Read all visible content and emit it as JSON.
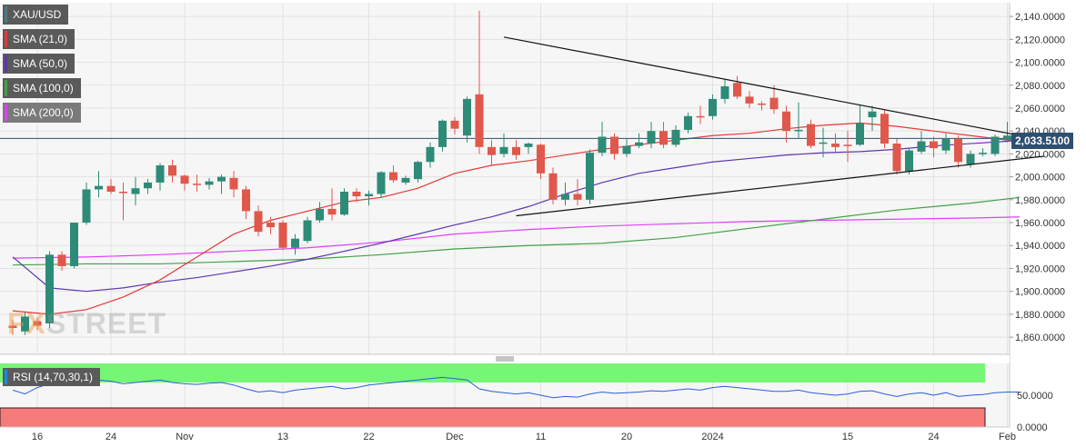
{
  "legends": [
    {
      "label": "XAU/USD",
      "color": "#4a7a82"
    },
    {
      "label": "SMA (21,0)",
      "color": "#e53935"
    },
    {
      "label": "SMA (50,0)",
      "color": "#5e35b1"
    },
    {
      "label": "SMA (100,0)",
      "color": "#43a047"
    },
    {
      "label": "SMA (200,0)",
      "color": "#e040fb"
    }
  ],
  "rsi_legend": {
    "label": "RSI (14,70,30,1)",
    "color": "#1e88e5"
  },
  "current_price_label": "2,033.5100",
  "watermark": {
    "fx": "FX",
    "rest": "STREET"
  },
  "colors": {
    "bull": "#2e8b77",
    "bear": "#e0584c",
    "rsi_overbought": "#77f577",
    "rsi_oversold": "#f77a7a",
    "rsi_line": "#2b5fd9",
    "trendline": "#111111",
    "price_line": "#2f4f70"
  },
  "chart_data": {
    "type": "candlestick",
    "price_axis": {
      "range": [
        1845,
        2152
      ],
      "ticks": [
        1860,
        1880,
        1900,
        1920,
        1940,
        1960,
        1980,
        2000,
        2020,
        2040,
        2060,
        2080,
        2100,
        2120,
        2140
      ],
      "tick_labels": [
        "1,860.0000",
        "1,880.0000",
        "1,900.0000",
        "1,920.0000",
        "1,940.0000",
        "1,960.0000",
        "1,980.0000",
        "2,000.0000",
        "2,020.0000",
        "2,040.0000",
        "2,060.0000",
        "2,080.0000",
        "2,100.0000",
        "2,120.0000",
        "2,140.0000"
      ]
    },
    "date_axis_labels": [
      {
        "label": "16",
        "i": 2
      },
      {
        "label": "24",
        "i": 8
      },
      {
        "label": "Nov",
        "i": 14
      },
      {
        "label": "13",
        "i": 22
      },
      {
        "label": "22",
        "i": 29
      },
      {
        "label": "Dec",
        "i": 36
      },
      {
        "label": "11",
        "i": 43
      },
      {
        "label": "20",
        "i": 50
      },
      {
        "label": "2024",
        "i": 57
      },
      {
        "label": "15",
        "i": 68
      },
      {
        "label": "24",
        "i": 75
      },
      {
        "label": "Feb",
        "i": 81
      }
    ],
    "candles": [
      {
        "o": 1870,
        "h": 1875,
        "l": 1862,
        "c": 1868
      },
      {
        "o": 1865,
        "h": 1882,
        "l": 1862,
        "c": 1878
      },
      {
        "o": 1874,
        "h": 1877,
        "l": 1866,
        "c": 1870
      },
      {
        "o": 1872,
        "h": 1935,
        "l": 1868,
        "c": 1932
      },
      {
        "o": 1932,
        "h": 1935,
        "l": 1918,
        "c": 1922
      },
      {
        "o": 1922,
        "h": 1960,
        "l": 1920,
        "c": 1960
      },
      {
        "o": 1960,
        "h": 1995,
        "l": 1958,
        "c": 1989
      },
      {
        "o": 1989,
        "h": 2005,
        "l": 1982,
        "c": 1992
      },
      {
        "o": 1992,
        "h": 1998,
        "l": 1985,
        "c": 1987
      },
      {
        "o": 1987,
        "h": 1995,
        "l": 1962,
        "c": 1986
      },
      {
        "o": 1985,
        "h": 2000,
        "l": 1975,
        "c": 1990
      },
      {
        "o": 1990,
        "h": 1998,
        "l": 1985,
        "c": 1995
      },
      {
        "o": 1995,
        "h": 2012,
        "l": 1988,
        "c": 2010
      },
      {
        "o": 2010,
        "h": 2015,
        "l": 1995,
        "c": 2001
      },
      {
        "o": 2001,
        "h": 2002,
        "l": 1988,
        "c": 1994
      },
      {
        "o": 1994,
        "h": 2002,
        "l": 1987,
        "c": 1993
      },
      {
        "o": 1993,
        "h": 1999,
        "l": 1989,
        "c": 1996
      },
      {
        "o": 1996,
        "h": 2002,
        "l": 1985,
        "c": 2000
      },
      {
        "o": 1999,
        "h": 2005,
        "l": 1982,
        "c": 1989
      },
      {
        "o": 1989,
        "h": 1992,
        "l": 1963,
        "c": 1970
      },
      {
        "o": 1970,
        "h": 1975,
        "l": 1948,
        "c": 1952
      },
      {
        "o": 1960,
        "h": 1965,
        "l": 1950,
        "c": 1956
      },
      {
        "o": 1960,
        "h": 1962,
        "l": 1936,
        "c": 1938
      },
      {
        "o": 1938,
        "h": 1950,
        "l": 1932,
        "c": 1946
      },
      {
        "o": 1944,
        "h": 1965,
        "l": 1942,
        "c": 1962
      },
      {
        "o": 1962,
        "h": 1978,
        "l": 1960,
        "c": 1972
      },
      {
        "o": 1972,
        "h": 1990,
        "l": 1962,
        "c": 1967
      },
      {
        "o": 1967,
        "h": 1990,
        "l": 1966,
        "c": 1987
      },
      {
        "o": 1987,
        "h": 1990,
        "l": 1978,
        "c": 1983
      },
      {
        "o": 1983,
        "h": 1988,
        "l": 1975,
        "c": 1985
      },
      {
        "o": 1985,
        "h": 2005,
        "l": 1982,
        "c": 2004
      },
      {
        "o": 2004,
        "h": 2010,
        "l": 1995,
        "c": 1997
      },
      {
        "o": 1995,
        "h": 2001,
        "l": 1993,
        "c": 1999
      },
      {
        "o": 1998,
        "h": 2014,
        "l": 1995,
        "c": 2013
      },
      {
        "o": 2013,
        "h": 2030,
        "l": 2008,
        "c": 2026
      },
      {
        "o": 2026,
        "h": 2050,
        "l": 2022,
        "c": 2049
      },
      {
        "o": 2049,
        "h": 2052,
        "l": 2037,
        "c": 2042
      },
      {
        "o": 2036,
        "h": 2070,
        "l": 2030,
        "c": 2068
      },
      {
        "o": 2072,
        "h": 2145,
        "l": 2020,
        "c": 2026
      },
      {
        "o": 2026,
        "h": 2032,
        "l": 2010,
        "c": 2019
      },
      {
        "o": 2020,
        "h": 2038,
        "l": 2017,
        "c": 2026
      },
      {
        "o": 2026,
        "h": 2032,
        "l": 2015,
        "c": 2019
      },
      {
        "o": 2026,
        "h": 2030,
        "l": 2020,
        "c": 2029
      },
      {
        "o": 2028,
        "h": 2029,
        "l": 1998,
        "c": 2003
      },
      {
        "o": 2003,
        "h": 2008,
        "l": 1976,
        "c": 1980
      },
      {
        "o": 1980,
        "h": 1995,
        "l": 1975,
        "c": 1985
      },
      {
        "o": 1985,
        "h": 1998,
        "l": 1975,
        "c": 1980
      },
      {
        "o": 1980,
        "h": 2024,
        "l": 1976,
        "c": 2021
      },
      {
        "o": 2021,
        "h": 2048,
        "l": 2018,
        "c": 2035
      },
      {
        "o": 2035,
        "h": 2038,
        "l": 2015,
        "c": 2020
      },
      {
        "o": 2020,
        "h": 2033,
        "l": 2017,
        "c": 2027
      },
      {
        "o": 2027,
        "h": 2038,
        "l": 2025,
        "c": 2030
      },
      {
        "o": 2029,
        "h": 2048,
        "l": 2025,
        "c": 2040
      },
      {
        "o": 2040,
        "h": 2048,
        "l": 2025,
        "c": 2028
      },
      {
        "o": 2028,
        "h": 2045,
        "l": 2026,
        "c": 2041
      },
      {
        "o": 2041,
        "h": 2056,
        "l": 2038,
        "c": 2053
      },
      {
        "o": 2053,
        "h": 2062,
        "l": 2046,
        "c": 2052
      },
      {
        "o": 2053,
        "h": 2072,
        "l": 2050,
        "c": 2068
      },
      {
        "o": 2068,
        "h": 2085,
        "l": 2064,
        "c": 2079
      },
      {
        "o": 2082,
        "h": 2088,
        "l": 2068,
        "c": 2070
      },
      {
        "o": 2070,
        "h": 2075,
        "l": 2060,
        "c": 2064
      },
      {
        "o": 2064,
        "h": 2066,
        "l": 2058,
        "c": 2063
      },
      {
        "o": 2069,
        "h": 2080,
        "l": 2055,
        "c": 2059
      },
      {
        "o": 2057,
        "h": 2062,
        "l": 2030,
        "c": 2040
      },
      {
        "o": 2041,
        "h": 2065,
        "l": 2033,
        "c": 2041
      },
      {
        "o": 2046,
        "h": 2050,
        "l": 2025,
        "c": 2027
      },
      {
        "o": 2029,
        "h": 2043,
        "l": 2017,
        "c": 2030
      },
      {
        "o": 2029,
        "h": 2038,
        "l": 2022,
        "c": 2026
      },
      {
        "o": 2028,
        "h": 2040,
        "l": 2013,
        "c": 2027
      },
      {
        "o": 2028,
        "h": 2063,
        "l": 2027,
        "c": 2047
      },
      {
        "o": 2052,
        "h": 2062,
        "l": 2040,
        "c": 2057
      },
      {
        "o": 2055,
        "h": 2058,
        "l": 2025,
        "c": 2029
      },
      {
        "o": 2029,
        "h": 2033,
        "l": 2002,
        "c": 2005
      },
      {
        "o": 2005,
        "h": 2025,
        "l": 2002,
        "c": 2023
      },
      {
        "o": 2022,
        "h": 2040,
        "l": 2020,
        "c": 2031
      },
      {
        "o": 2031,
        "h": 2035,
        "l": 2017,
        "c": 2025
      },
      {
        "o": 2023,
        "h": 2038,
        "l": 2020,
        "c": 2033
      },
      {
        "o": 2033,
        "h": 2036,
        "l": 2008,
        "c": 2013
      },
      {
        "o": 2011,
        "h": 2023,
        "l": 2008,
        "c": 2020
      },
      {
        "o": 2021,
        "h": 2025,
        "l": 2018,
        "c": 2021
      },
      {
        "o": 2020,
        "h": 2037,
        "l": 2018,
        "c": 2035
      },
      {
        "o": 2032,
        "h": 2048,
        "l": 2030,
        "c": 2036
      },
      {
        "o": 2036,
        "h": 2040,
        "l": 2028,
        "c": 2033.51
      }
    ],
    "sma21": [
      [
        0,
        1883
      ],
      [
        3,
        1880
      ],
      [
        6,
        1884
      ],
      [
        9,
        1895
      ],
      [
        12,
        1910
      ],
      [
        15,
        1930
      ],
      [
        18,
        1950
      ],
      [
        21,
        1962
      ],
      [
        24,
        1970
      ],
      [
        27,
        1978
      ],
      [
        30,
        1982
      ],
      [
        33,
        1990
      ],
      [
        36,
        2003
      ],
      [
        39,
        2010
      ],
      [
        42,
        2014
      ],
      [
        45,
        2019
      ],
      [
        48,
        2024
      ],
      [
        51,
        2028
      ],
      [
        54,
        2032
      ],
      [
        57,
        2036
      ],
      [
        60,
        2038
      ],
      [
        63,
        2042
      ],
      [
        66,
        2045
      ],
      [
        69,
        2047
      ],
      [
        72,
        2044
      ],
      [
        75,
        2040
      ],
      [
        78,
        2036
      ],
      [
        81,
        2032
      ],
      [
        82,
        2032
      ]
    ],
    "sma50": [
      [
        0,
        1930
      ],
      [
        3,
        1903
      ],
      [
        6,
        1900
      ],
      [
        9,
        1903
      ],
      [
        12,
        1908
      ],
      [
        15,
        1912
      ],
      [
        18,
        1917
      ],
      [
        21,
        1922
      ],
      [
        24,
        1928
      ],
      [
        27,
        1935
      ],
      [
        30,
        1942
      ],
      [
        33,
        1950
      ],
      [
        36,
        1958
      ],
      [
        39,
        1965
      ],
      [
        42,
        1974
      ],
      [
        45,
        1985
      ],
      [
        48,
        1995
      ],
      [
        51,
        2003
      ],
      [
        54,
        2008
      ],
      [
        57,
        2013
      ],
      [
        60,
        2016
      ],
      [
        63,
        2019
      ],
      [
        66,
        2021
      ],
      [
        69,
        2022
      ],
      [
        72,
        2024
      ],
      [
        75,
        2027
      ],
      [
        78,
        2029
      ],
      [
        81,
        2031
      ],
      [
        82,
        2032
      ]
    ],
    "sma100": [
      [
        0,
        1923
      ],
      [
        6,
        1924
      ],
      [
        12,
        1924
      ],
      [
        18,
        1926
      ],
      [
        24,
        1928
      ],
      [
        30,
        1932
      ],
      [
        36,
        1937
      ],
      [
        42,
        1940
      ],
      [
        48,
        1942
      ],
      [
        54,
        1947
      ],
      [
        60,
        1955
      ],
      [
        66,
        1963
      ],
      [
        72,
        1971
      ],
      [
        78,
        1977
      ],
      [
        82,
        1982
      ]
    ],
    "sma200": [
      [
        0,
        1929
      ],
      [
        6,
        1930
      ],
      [
        12,
        1932
      ],
      [
        18,
        1935
      ],
      [
        24,
        1938
      ],
      [
        30,
        1943
      ],
      [
        36,
        1950
      ],
      [
        42,
        1954
      ],
      [
        48,
        1957
      ],
      [
        54,
        1959
      ],
      [
        60,
        1961
      ],
      [
        66,
        1962
      ],
      [
        72,
        1963
      ],
      [
        78,
        1964
      ],
      [
        82,
        1965
      ]
    ],
    "trendlines": [
      {
        "name": "upper",
        "from": [
          40,
          2122
        ],
        "to": [
          84,
          2032
        ]
      },
      {
        "name": "lower",
        "from": [
          41,
          1966
        ],
        "to": [
          84,
          2018
        ]
      }
    ],
    "current_price": 2033.51,
    "rsi": {
      "range": [
        0,
        100
      ],
      "ticks": [
        0,
        50
      ],
      "tick_labels": [
        "0.0000",
        "50.0000"
      ],
      "overbought": 70,
      "oversold": 30,
      "values": [
        58,
        52,
        62,
        68,
        75,
        70,
        72,
        74,
        72,
        68,
        70,
        72,
        74,
        70,
        68,
        67,
        69,
        70,
        66,
        60,
        55,
        57,
        54,
        58,
        60,
        62,
        64,
        60,
        62,
        66,
        68,
        70,
        72,
        74,
        76,
        78,
        76,
        74,
        60,
        56,
        54,
        52,
        54,
        50,
        46,
        48,
        47,
        52,
        55,
        53,
        54,
        55,
        57,
        56,
        58,
        60,
        58,
        62,
        64,
        62,
        60,
        58,
        56,
        56,
        58,
        54,
        52,
        50,
        52,
        56,
        57,
        52,
        48,
        52,
        54,
        50,
        54,
        48,
        50,
        51,
        54,
        55,
        55
      ]
    }
  }
}
